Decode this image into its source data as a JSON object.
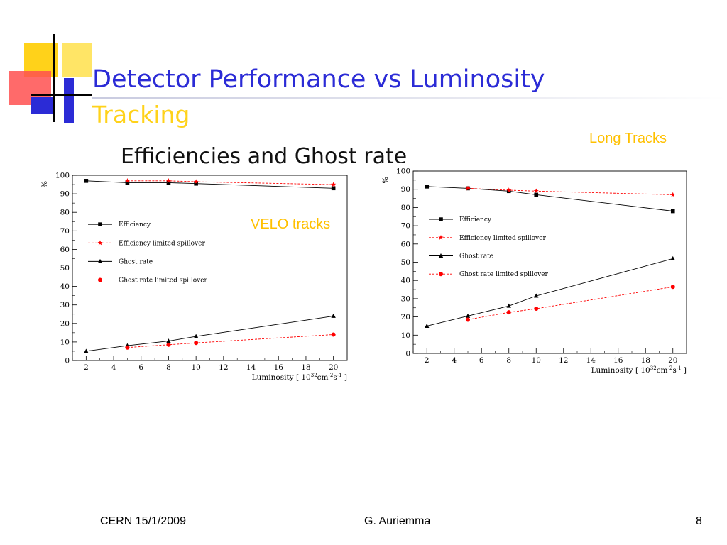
{
  "slide": {
    "title": "Detector Performance vs Luminosity",
    "subtitle": "Tracking",
    "bullet": "Efficiencies and Ghost rate",
    "label_long": "Long Tracks",
    "label_velo": "VELO tracks",
    "colors": {
      "title": "#2b2bd6",
      "subtitle": "#ffd21a",
      "label": "#ffc000"
    }
  },
  "footer": {
    "left": "CERN 15/1/2009",
    "center": "G. Auriemma",
    "page": "8"
  },
  "chart_data": [
    {
      "type": "line",
      "ylabel": "%",
      "xlabel": "Luminosity [ 10",
      "xlabel_sup": "32",
      "xlabel_mid": "cm",
      "xlabel_sup2": "-2",
      "xlabel_end": "s",
      "xlabel_sup3": "-1",
      "xlabel_close": "]",
      "xlim": [
        1,
        21
      ],
      "ylim": [
        0,
        100
      ],
      "xticks": [
        2,
        4,
        6,
        8,
        10,
        12,
        14,
        16,
        18,
        20
      ],
      "yticks": [
        0,
        10,
        20,
        30,
        40,
        50,
        60,
        70,
        80,
        90,
        100
      ],
      "legend_position": "left",
      "series": [
        {
          "name": "Efficiency",
          "color": "#000000",
          "dash": "solid",
          "marker": "square",
          "x": [
            2,
            5,
            8,
            10,
            20
          ],
          "y": [
            97,
            96,
            96,
            95.5,
            93
          ]
        },
        {
          "name": "Efficiency limited spillover",
          "color": "#ff0000",
          "dash": "dashed",
          "marker": "star",
          "x": [
            5,
            8,
            10,
            20
          ],
          "y": [
            97,
            97,
            96.5,
            95
          ]
        },
        {
          "name": "Ghost rate",
          "color": "#000000",
          "dash": "solid",
          "marker": "triangle",
          "x": [
            2,
            5,
            8,
            10,
            20
          ],
          "y": [
            5,
            8,
            10.5,
            13,
            24
          ]
        },
        {
          "name": "Ghost rate limited spillover",
          "color": "#ff0000",
          "dash": "dashed",
          "marker": "circle",
          "x": [
            5,
            8,
            10,
            20
          ],
          "y": [
            7,
            8.5,
            9.5,
            14
          ]
        }
      ]
    },
    {
      "type": "line",
      "ylabel": "%",
      "xlabel": "Luminosity [ 10",
      "xlabel_sup": "32",
      "xlabel_mid": "cm",
      "xlabel_sup2": "-2",
      "xlabel_end": "s",
      "xlabel_sup3": "-1",
      "xlabel_close": "]",
      "xlim": [
        1,
        21
      ],
      "ylim": [
        0,
        100
      ],
      "xticks": [
        2,
        4,
        6,
        8,
        10,
        12,
        14,
        16,
        18,
        20
      ],
      "yticks": [
        0,
        10,
        20,
        30,
        40,
        50,
        60,
        70,
        80,
        90,
        100
      ],
      "legend_position": "left",
      "series": [
        {
          "name": "Efficiency",
          "color": "#000000",
          "dash": "solid",
          "marker": "square",
          "x": [
            2,
            5,
            8,
            10,
            20
          ],
          "y": [
            91.5,
            90.5,
            89,
            87,
            78
          ]
        },
        {
          "name": "Efficiency limited spillover",
          "color": "#ff0000",
          "dash": "dashed",
          "marker": "star",
          "x": [
            5,
            8,
            10,
            20
          ],
          "y": [
            90.5,
            89.5,
            89,
            87
          ]
        },
        {
          "name": "Ghost rate",
          "color": "#000000",
          "dash": "solid",
          "marker": "triangle",
          "x": [
            2,
            5,
            8,
            10,
            20
          ],
          "y": [
            15,
            20.5,
            26,
            31.5,
            52
          ]
        },
        {
          "name": "Ghost rate limited spillover",
          "color": "#ff0000",
          "dash": "dashed",
          "marker": "circle",
          "x": [
            5,
            8,
            10,
            20
          ],
          "y": [
            18.5,
            22.5,
            24.5,
            36.5
          ]
        }
      ]
    }
  ]
}
